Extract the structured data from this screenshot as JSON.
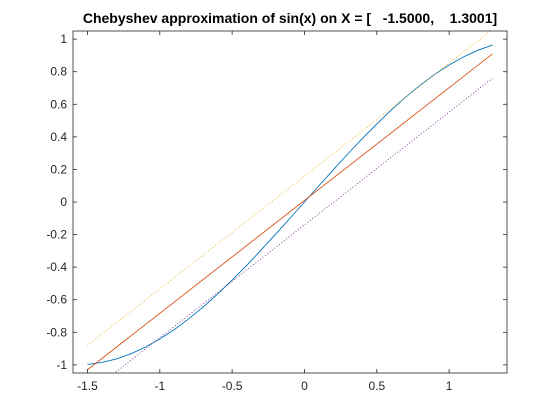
{
  "chart_data": {
    "type": "line",
    "title": "Chebyshev approximation of sin(x) on X = [   -1.5000,    1.3001]",
    "xlabel": "",
    "ylabel": "",
    "xlim": [
      -1.6,
      1.4
    ],
    "ylim": [
      -1.05,
      1.05
    ],
    "x_ticks": [
      -1.5,
      -1,
      -0.5,
      0,
      0.5,
      1
    ],
    "x_tick_labels": [
      "-1.5",
      "-1",
      "-0.5",
      "0",
      "0.5",
      "1"
    ],
    "y_ticks": [
      -1,
      -0.8,
      -0.6,
      -0.4,
      -0.2,
      0,
      0.2,
      0.4,
      0.6,
      0.8,
      1
    ],
    "y_tick_labels": [
      "-1",
      "-0.8",
      "-0.6",
      "-0.4",
      "-0.2",
      "0",
      "0.2",
      "0.4",
      "0.6",
      "0.8",
      "1"
    ],
    "grid": false,
    "box": true,
    "series": [
      {
        "style": "solid",
        "color": "#0072BD",
        "x": [
          -1.5,
          -1.4,
          -1.3,
          -1.2,
          -1.1,
          -1.0,
          -0.9,
          -0.8,
          -0.7,
          -0.6,
          -0.5,
          -0.4,
          -0.3,
          -0.2,
          -0.1,
          0.0,
          0.1,
          0.2,
          0.3,
          0.4,
          0.5,
          0.6,
          0.7,
          0.8,
          0.9,
          1.0,
          1.1,
          1.2,
          1.3001
        ],
        "y": [
          -0.9975,
          -0.9854,
          -0.9636,
          -0.932,
          -0.8912,
          -0.8415,
          -0.7833,
          -0.7174,
          -0.6442,
          -0.5646,
          -0.4794,
          -0.3894,
          -0.2955,
          -0.1987,
          -0.0998,
          0.0,
          0.0998,
          0.1987,
          0.2955,
          0.3894,
          0.4794,
          0.5646,
          0.6442,
          0.7174,
          0.7833,
          0.8415,
          0.8912,
          0.932,
          0.9636
        ]
      },
      {
        "style": "solid",
        "color": "#D95319",
        "x": [
          -1.5,
          1.3001
        ],
        "y": [
          -1.03,
          0.91
        ]
      },
      {
        "style": "dotted",
        "color": "#EDB120",
        "x": [
          -1.5,
          1.3001
        ],
        "y": [
          -0.88,
          1.06
        ]
      },
      {
        "style": "dotted",
        "color": "#7E2F8E",
        "x": [
          -1.5,
          1.3001
        ],
        "y": [
          -1.18,
          0.76
        ]
      }
    ]
  }
}
